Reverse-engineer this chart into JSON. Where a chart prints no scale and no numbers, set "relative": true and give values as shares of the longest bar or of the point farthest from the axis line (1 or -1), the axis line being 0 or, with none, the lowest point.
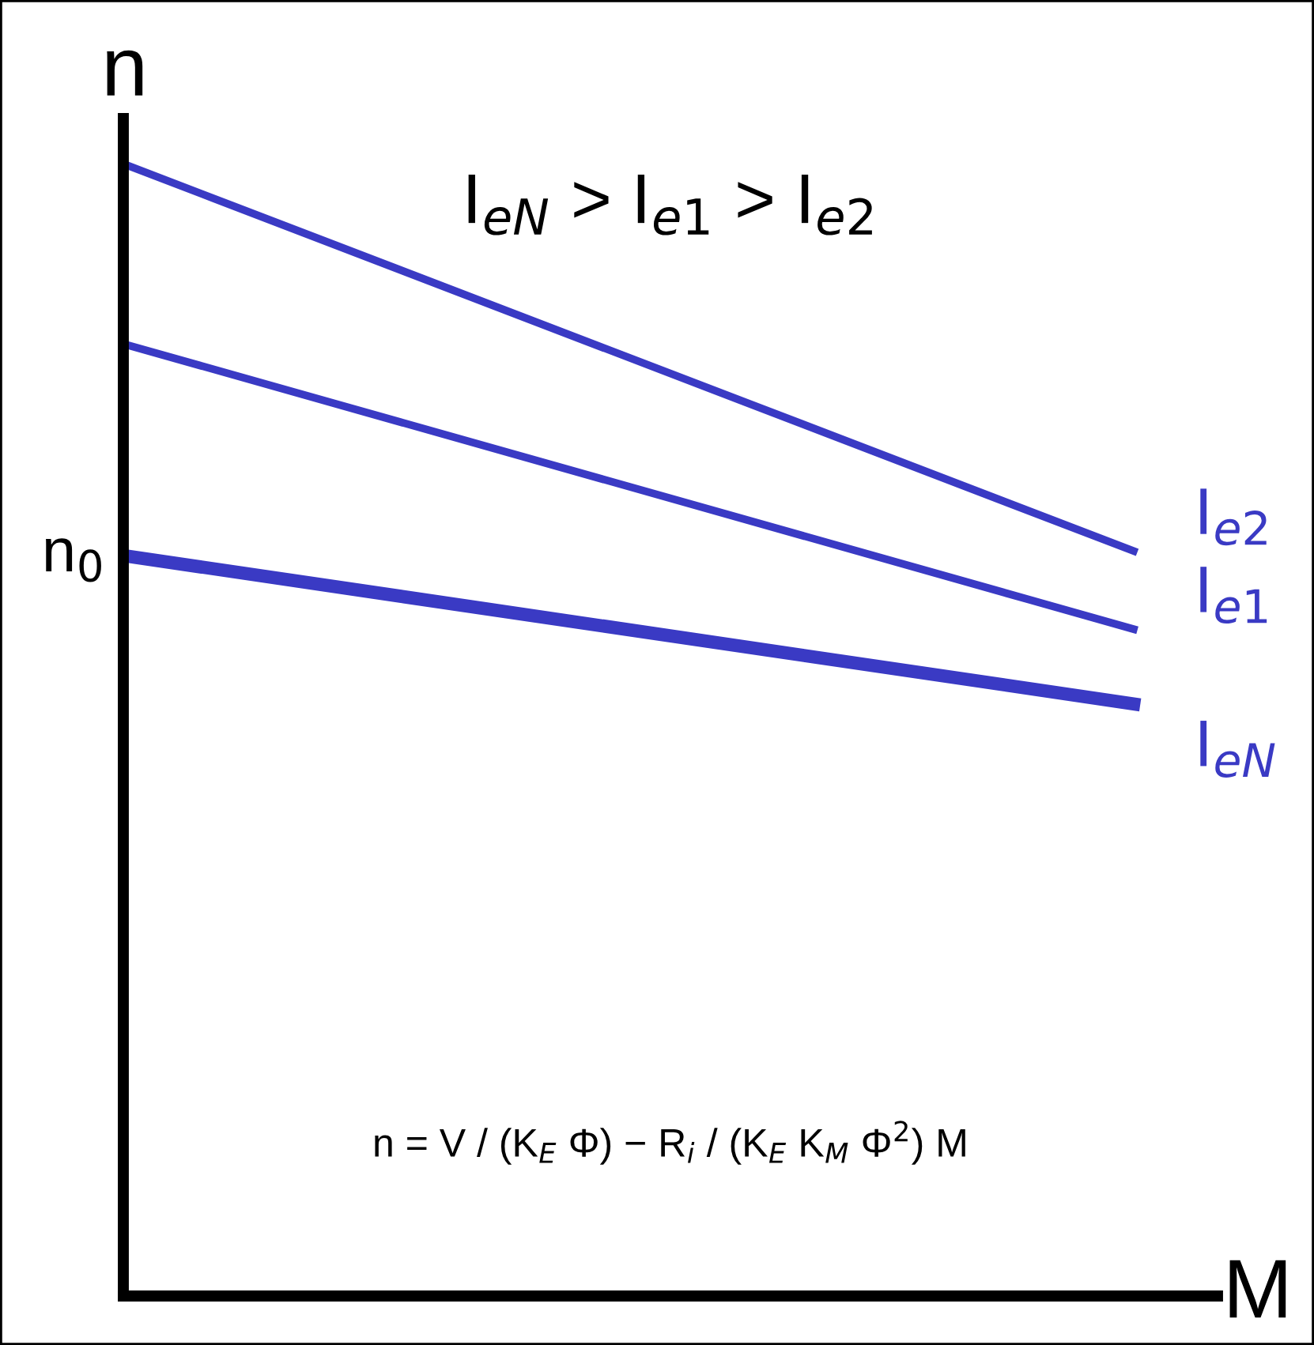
{
  "chart_data": {
    "type": "line",
    "relative": true,
    "title": "I$_{eN}$ > I$_{e1}$ > I$_{e2}$",
    "xlabel": "M",
    "ylabel": "n",
    "categories": [
      null,
      null
    ],
    "series": [
      {
        "name": "I$_{e2}$",
        "color": "#3a3ac4",
        "values": [
          1,
          0.658
        ]
      },
      {
        "name": "I$_{e1}$",
        "color": "#3a3ac4",
        "values": [
          0.841,
          0.589
        ]
      },
      {
        "name": "I$_{eN}$",
        "color": "#3a3ac4",
        "values": [
          0.654,
          0.523
        ]
      }
    ],
    "annotations": [
      "n$_{0}$",
      "n = V / (K$_{E}$ Φ) − R$_{i}$ / (K$_{E}$ K$_{M}$ Φ$^{2}$) M"
    ],
    "legend": false,
    "marker": "none",
    "line_style": "solid"
  }
}
